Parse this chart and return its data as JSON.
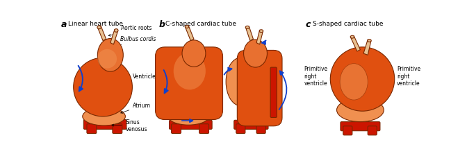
{
  "title_a": "Linear heart tube",
  "title_b": "C-shaped cardiac tube",
  "title_c": "S-shaped cardiac tube",
  "label_a": "a",
  "label_b": "b",
  "label_c": "c",
  "bg_color": "#ffffff",
  "orange_dark": "#e05010",
  "orange_mid": "#e87030",
  "orange_light": "#f09050",
  "peach_light": "#f5c080",
  "tan_aorta": "#e8c090",
  "red_dark": "#cc1500",
  "outline": "#7a2800",
  "arrow_color": "#1040cc"
}
